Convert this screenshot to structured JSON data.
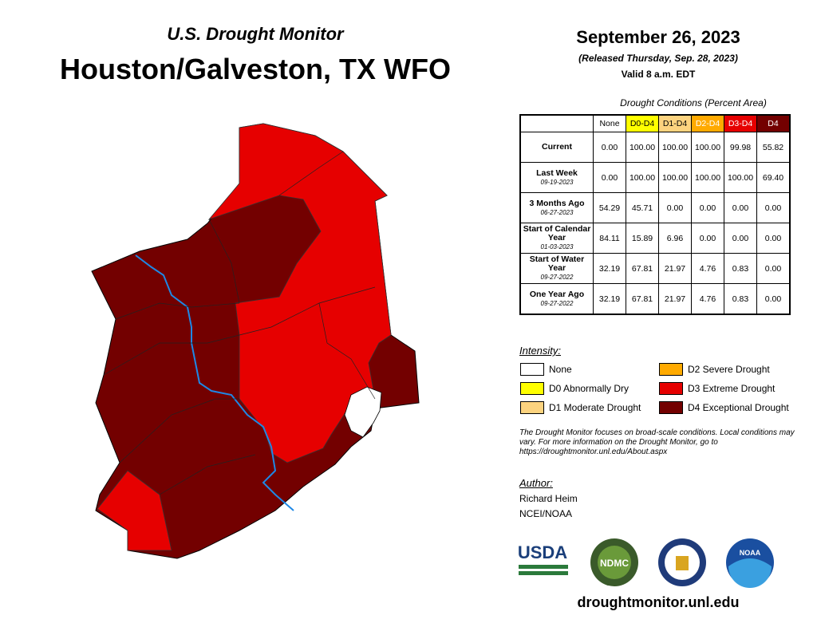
{
  "header": {
    "subtitle": "U.S. Drought Monitor",
    "title": "Houston/Galveston, TX WFO"
  },
  "date": {
    "title": "September 26, 2023",
    "released": "(Released Thursday, Sep. 28, 2023)",
    "valid": "Valid 8 a.m. EDT"
  },
  "table": {
    "caption": "Drought Conditions (Percent Area)",
    "columns": [
      {
        "label": "None",
        "color": "#ffffff",
        "text_color": "#000000"
      },
      {
        "label": "D0-D4",
        "color": "#ffff00",
        "text_color": "#000000"
      },
      {
        "label": "D1-D4",
        "color": "#fcd37f",
        "text_color": "#000000"
      },
      {
        "label": "D2-D4",
        "color": "#ffaa00",
        "text_color": "#ffffff"
      },
      {
        "label": "D3-D4",
        "color": "#e60000",
        "text_color": "#ffffff"
      },
      {
        "label": "D4",
        "color": "#730000",
        "text_color": "#ffffff"
      }
    ],
    "rows": [
      {
        "label": "Current",
        "values": [
          "0.00",
          "100.00",
          "100.00",
          "100.00",
          "99.98",
          "55.82"
        ]
      },
      {
        "label": "Last Week",
        "date": "09-19-2023",
        "values": [
          "0.00",
          "100.00",
          "100.00",
          "100.00",
          "100.00",
          "69.40"
        ]
      },
      {
        "label": "3 Months Ago",
        "date": "06-27-2023",
        "values": [
          "54.29",
          "45.71",
          "0.00",
          "0.00",
          "0.00",
          "0.00"
        ]
      },
      {
        "label": "Start of Calendar Year",
        "date": "01-03-2023",
        "values": [
          "84.11",
          "15.89",
          "6.96",
          "0.00",
          "0.00",
          "0.00"
        ]
      },
      {
        "label": "Start of Water Year",
        "date": "09-27-2022",
        "values": [
          "32.19",
          "67.81",
          "21.97",
          "4.76",
          "0.83",
          "0.00"
        ]
      },
      {
        "label": "One Year Ago",
        "date": "09-27-2022",
        "values": [
          "32.19",
          "67.81",
          "21.97",
          "4.76",
          "0.83",
          "0.00"
        ]
      }
    ]
  },
  "legend": {
    "title": "Intensity:",
    "items": [
      {
        "label": "None",
        "color": "#ffffff"
      },
      {
        "label": "D0 Abnormally Dry",
        "color": "#ffff00"
      },
      {
        "label": "D1 Moderate Drought",
        "color": "#fcd37f"
      },
      {
        "label": "D2 Severe Drought",
        "color": "#ffaa00"
      },
      {
        "label": "D3 Extreme Drought",
        "color": "#e60000"
      },
      {
        "label": "D4 Exceptional Drought",
        "color": "#730000"
      }
    ]
  },
  "note": "The Drought Monitor focuses on broad-scale conditions. Local conditions may vary. For more information on the Drought Monitor, go to https://droughtmonitor.unl.edu/About.aspx",
  "author": {
    "label": "Author:",
    "name": "Richard Heim",
    "org": "NCEI/NOAA"
  },
  "logos": [
    "USDA",
    "NDMC",
    "NOAA"
  ],
  "url": "droughtmonitor.unl.edu"
}
